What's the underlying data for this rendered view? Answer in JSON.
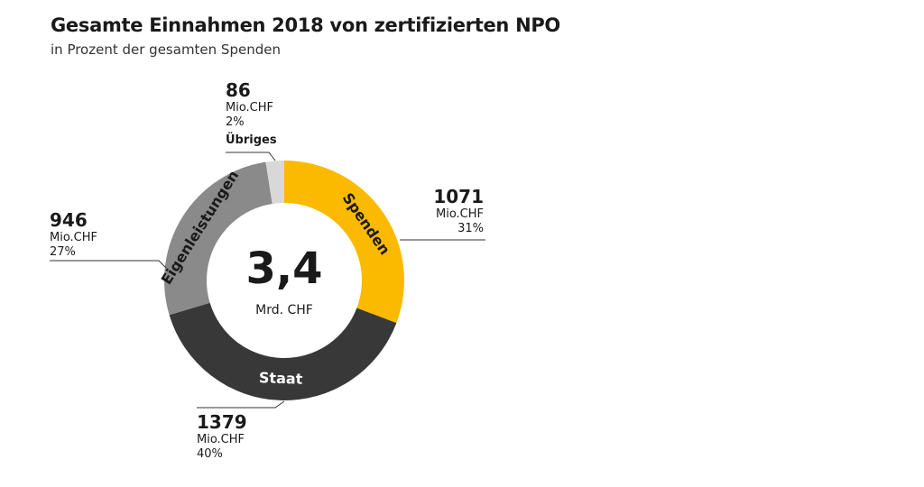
{
  "chart_data": {
    "type": "pie",
    "donut": true,
    "title": "Gesamte Einnahmen 2018 von zertifizierten NPO",
    "subtitle": "in Prozent der gesamten Spenden",
    "center_value": "3,4",
    "center_unit": "Mrd. CHF",
    "unit": "Mio.CHF",
    "slices": [
      {
        "name": "Spenden",
        "value": 1071,
        "percent": "31%",
        "color": "#fbba00",
        "text_color": "#1a1a1a"
      },
      {
        "name": "Staat",
        "value": 1379,
        "percent": "40%",
        "color": "#383838",
        "text_color": "#ffffff"
      },
      {
        "name": "Eigenleistungen",
        "value": 946,
        "percent": "27%",
        "color": "#8a8a8a",
        "text_color": "#1a1a1a"
      },
      {
        "name": "Übriges",
        "value": 86,
        "percent": "2%",
        "color": "#d8d8d8",
        "text_color": "#1a1a1a"
      }
    ]
  }
}
